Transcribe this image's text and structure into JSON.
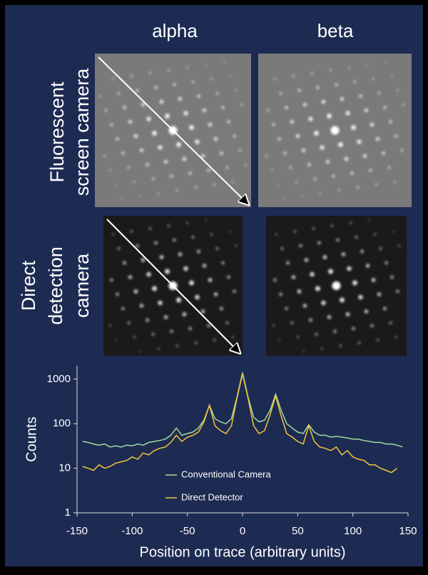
{
  "figure": {
    "columns": [
      "alpha",
      "beta"
    ],
    "rows": [
      [
        "Fluorescent",
        "screen camera"
      ],
      [
        "Direct",
        "detection",
        "camera"
      ]
    ]
  },
  "chart_data": {
    "type": "line",
    "x_label": "Position on trace (arbitrary units)",
    "y_label": "Counts",
    "x": [
      -145,
      -140,
      -135,
      -130,
      -125,
      -120,
      -115,
      -110,
      -105,
      -100,
      -95,
      -90,
      -85,
      -80,
      -75,
      -70,
      -65,
      -60,
      -55,
      -50,
      -45,
      -40,
      -35,
      -30,
      -25,
      -20,
      -15,
      -10,
      -5,
      0,
      5,
      10,
      15,
      20,
      25,
      30,
      35,
      40,
      45,
      50,
      55,
      60,
      65,
      70,
      75,
      80,
      85,
      90,
      95,
      100,
      105,
      110,
      115,
      120,
      125,
      130,
      135,
      140,
      145
    ],
    "series": [
      {
        "name": "Conventional Camera",
        "color": "#9fd9a0",
        "values": [
          40,
          38,
          35,
          33,
          35,
          30,
          32,
          30,
          33,
          32,
          35,
          33,
          38,
          40,
          42,
          45,
          55,
          80,
          55,
          60,
          65,
          80,
          120,
          260,
          130,
          110,
          100,
          130,
          400,
          1400,
          400,
          140,
          110,
          120,
          200,
          460,
          200,
          100,
          80,
          65,
          60,
          95,
          65,
          55,
          55,
          50,
          52,
          50,
          48,
          45,
          45,
          42,
          40,
          38,
          38,
          35,
          35,
          33,
          30
        ]
      },
      {
        "name": "Direct Detector",
        "color": "#f0c53c",
        "values": [
          11,
          10,
          9,
          12,
          10,
          11,
          13,
          14,
          15,
          18,
          16,
          22,
          20,
          25,
          28,
          30,
          38,
          55,
          40,
          50,
          55,
          65,
          110,
          260,
          90,
          70,
          60,
          90,
          380,
          1300,
          380,
          90,
          60,
          70,
          160,
          420,
          150,
          60,
          50,
          40,
          35,
          90,
          40,
          30,
          28,
          25,
          30,
          20,
          25,
          18,
          16,
          15,
          12,
          12,
          10,
          9,
          8,
          10,
          null
        ]
      }
    ],
    "xlim": [
      -150,
      150
    ],
    "xticks": [
      -150,
      -100,
      -50,
      0,
      50,
      100,
      150
    ],
    "ylim": [
      1,
      2000
    ],
    "yticks": [
      1,
      10,
      100,
      1000
    ],
    "log_y": true,
    "legend": "bottom-center"
  }
}
